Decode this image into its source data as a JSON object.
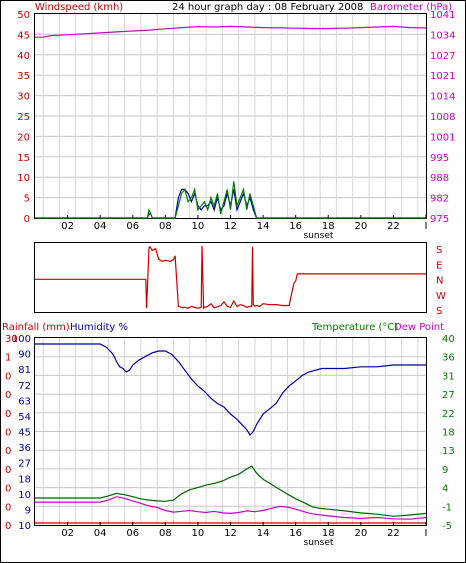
{
  "header": {
    "title": "24 hour graph day : 08 February 2008",
    "left_label": "Windspeed (kmh)",
    "right_label": "Barometer (hPa)"
  },
  "colors": {
    "wind": "#008000",
    "gust": "#0000a0",
    "baro": "#cc00cc",
    "winddir": "#cc0000",
    "rain": "#cc0000",
    "humidity": "#0000a0",
    "temperature": "#006400",
    "dewpoint": "#cc00cc",
    "text_red": "#cc0000",
    "text_mag": "#cc00cc",
    "text_green": "#008000",
    "text_blue": "#0000a0"
  },
  "x_axis": {
    "ticks": [
      "02",
      "04",
      "06",
      "08",
      "10",
      "12",
      "14",
      "16",
      "18",
      "20",
      "22",
      "I"
    ],
    "sunset_label": "sunset"
  },
  "panel3_labels": {
    "rain": "Rainfall (mm)",
    "humidity": "Humidity %",
    "temperature": "Temperature (°C)",
    "dewpoint": "Dew Point"
  },
  "chart_data": [
    {
      "type": "line",
      "title": "24 hour graph day : 08 February 2008",
      "xlabel": "",
      "ylabel": "Windspeed (kmh)",
      "y2label": "Barometer (hPa)",
      "xlim": [
        0,
        24
      ],
      "ylim": [
        0,
        50
      ],
      "y2lim": [
        975,
        1041
      ],
      "yticks": [
        0,
        5,
        10,
        15,
        20,
        25,
        30,
        35,
        40,
        45,
        50
      ],
      "y2ticks": [
        "975",
        "982",
        "988",
        "995",
        "1001",
        "1008",
        "1014",
        "1021",
        "1027",
        "1034",
        "1041"
      ],
      "series": [
        {
          "name": "Barometer (hPa)",
          "axis": "right",
          "x": [
            0,
            0.5,
            1,
            2,
            3,
            4,
            5,
            6,
            7,
            8,
            9,
            10,
            11,
            12,
            13,
            14,
            15,
            16,
            17,
            18,
            19,
            20,
            21,
            22,
            23,
            24
          ],
          "values": [
            1033.5,
            1033.5,
            1034.0,
            1034.3,
            1034.6,
            1034.9,
            1035.2,
            1035.5,
            1035.8,
            1036.2,
            1036.6,
            1036.9,
            1036.8,
            1037.0,
            1036.8,
            1036.6,
            1036.5,
            1036.4,
            1036.3,
            1036.3,
            1036.4,
            1036.6,
            1036.8,
            1037.0,
            1036.6,
            1036.5
          ]
        },
        {
          "name": "Windspeed",
          "axis": "left",
          "x": [
            0,
            6.9,
            7.0,
            7.1,
            7.2,
            8.6,
            8.8,
            9.0,
            9.2,
            9.4,
            9.6,
            9.8,
            10.0,
            10.2,
            10.4,
            10.6,
            10.8,
            11.0,
            11.2,
            11.4,
            11.6,
            11.8,
            12.0,
            12.2,
            12.4,
            12.6,
            12.8,
            13.0,
            13.2,
            13.4,
            13.6,
            24
          ],
          "values": [
            0,
            0,
            2,
            1,
            0,
            0,
            3,
            6,
            7,
            4,
            5,
            7,
            2,
            3,
            4,
            2,
            5,
            3,
            6,
            1,
            4,
            7,
            2,
            9,
            3,
            5,
            7,
            2,
            6,
            3,
            0,
            0
          ]
        },
        {
          "name": "Gust",
          "axis": "left",
          "x": [
            0,
            6.9,
            7.0,
            7.1,
            7.2,
            8.6,
            8.8,
            9.0,
            9.2,
            9.4,
            9.6,
            9.8,
            10.0,
            10.2,
            10.4,
            10.6,
            10.8,
            11.0,
            11.2,
            11.4,
            11.6,
            11.8,
            12.0,
            12.2,
            12.4,
            12.6,
            12.8,
            13.0,
            13.2,
            13.4,
            13.6,
            24
          ],
          "values": [
            0,
            0,
            1,
            1,
            0,
            0,
            5,
            7,
            7,
            6,
            4,
            6,
            3,
            2,
            3,
            3,
            4,
            2,
            5,
            2,
            3,
            6,
            3,
            7,
            2,
            4,
            6,
            3,
            5,
            2,
            0,
            0
          ]
        }
      ]
    },
    {
      "type": "line",
      "title": "",
      "ylabel": "",
      "xlim": [
        0,
        24
      ],
      "ylim": [
        0,
        360
      ],
      "right_tick_labels": [
        "S",
        "E",
        "N",
        "W",
        "S"
      ],
      "series": [
        {
          "name": "Wind direction",
          "x": [
            0,
            6.8,
            6.85,
            7.0,
            7.05,
            7.2,
            7.4,
            7.6,
            7.8,
            8.0,
            8.3,
            8.5,
            8.6,
            8.8,
            9.0,
            9.1,
            9.15,
            9.4,
            9.6,
            9.8,
            10.0,
            10.2,
            10.25,
            10.35,
            10.4,
            10.6,
            10.8,
            11.0,
            11.2,
            11.4,
            11.6,
            11.8,
            12.0,
            12.2,
            12.4,
            12.6,
            12.8,
            13.0,
            13.2,
            13.3,
            13.35,
            13.4,
            13.5,
            13.6,
            13.8,
            14.0,
            14.4,
            14.8,
            15.2,
            15.6,
            15.9,
            16.0,
            16.1,
            24
          ],
          "values": [
            170,
            170,
            10,
            345,
            350,
            330,
            340,
            280,
            270,
            275,
            270,
            280,
            300,
            20,
            15,
            12,
            15,
            10,
            20,
            14,
            10,
            15,
            355,
            10,
            15,
            20,
            35,
            12,
            18,
            25,
            45,
            20,
            15,
            50,
            20,
            30,
            25,
            15,
            20,
            20,
            350,
            30,
            20,
            25,
            20,
            35,
            30,
            30,
            25,
            25,
            150,
            160,
            200,
            200
          ]
        }
      ]
    },
    {
      "type": "line",
      "title": "",
      "xlim": [
        0,
        24
      ],
      "ylabel": "Rainfall (mm)   Humidity %",
      "y2label": "Temperature (°C)Dew Point",
      "rain_ticks": [
        "0",
        "0",
        "0",
        "0",
        "0",
        "0",
        "0",
        "0",
        "0",
        "1",
        "30"
      ],
      "humidity_ticks": [
        "10",
        "9",
        "10",
        "18",
        "27",
        "36",
        "45",
        "54",
        "63",
        "72",
        "81",
        "90",
        "100"
      ],
      "temp_ticks": [
        "-5",
        "-1",
        "4",
        "9",
        "13",
        "18",
        "22",
        "27",
        "31",
        "36",
        "40"
      ],
      "ylim_humidity": [
        0,
        100
      ],
      "ylim_temp": [
        -5,
        40
      ],
      "series": [
        {
          "name": "Humidity %",
          "axis": "left",
          "x": [
            0,
            2,
            4,
            4.4,
            4.8,
            5.0,
            5.2,
            5.4,
            5.6,
            5.8,
            6.0,
            6.4,
            6.8,
            7.2,
            7.6,
            8.0,
            8.4,
            8.8,
            9.2,
            9.6,
            10.0,
            10.4,
            10.8,
            11.2,
            11.6,
            12.0,
            12.4,
            12.8,
            13.0,
            13.2,
            13.4,
            13.6,
            13.8,
            14.0,
            14.4,
            14.8,
            15.2,
            15.6,
            16.0,
            16.4,
            16.8,
            17.2,
            17.6,
            18.0,
            19.0,
            20.0,
            21.0,
            22.0,
            23.0,
            24
          ],
          "values": [
            100,
            100,
            100,
            98,
            94,
            90,
            87,
            86,
            84,
            85,
            88,
            91,
            93,
            95,
            96,
            96,
            94,
            90,
            85,
            80,
            76,
            73,
            69,
            66,
            64,
            60,
            57,
            53,
            51,
            48,
            50,
            54,
            57,
            60,
            63,
            66,
            72,
            76,
            79,
            82,
            84,
            85,
            86,
            86,
            86,
            87,
            87,
            88,
            88,
            88
          ]
        },
        {
          "name": "Temperature (°C)",
          "axis": "right",
          "x": [
            0,
            2,
            4,
            4.5,
            5.0,
            5.5,
            6.0,
            6.5,
            7.0,
            7.5,
            8.0,
            8.5,
            9.0,
            9.5,
            10.0,
            10.5,
            11.0,
            11.5,
            12.0,
            12.5,
            13.0,
            13.3,
            13.6,
            14.0,
            14.5,
            15.0,
            15.5,
            16.0,
            16.5,
            17.0,
            17.5,
            18.0,
            19.0,
            20.0,
            21.0,
            22.0,
            23.0,
            24
          ],
          "values": [
            1.5,
            1.5,
            1.5,
            2.0,
            2.6,
            2.3,
            1.8,
            1.3,
            1.0,
            0.8,
            0.7,
            1.0,
            2.5,
            3.5,
            4.0,
            4.6,
            5.0,
            5.6,
            6.5,
            7.2,
            8.5,
            9.2,
            7.5,
            6.0,
            4.8,
            3.6,
            2.4,
            1.3,
            0.4,
            -0.6,
            -1.0,
            -1.2,
            -1.6,
            -2.1,
            -2.4,
            -2.9,
            -2.6,
            -2.2
          ]
        },
        {
          "name": "Dew Point",
          "axis": "right",
          "x": [
            0,
            2,
            4,
            4.5,
            5.0,
            5.5,
            6.0,
            6.5,
            7.0,
            7.5,
            8.0,
            8.5,
            9.0,
            9.5,
            10.0,
            10.5,
            11.0,
            11.5,
            12.0,
            12.5,
            13.0,
            13.5,
            14.0,
            14.5,
            15.0,
            15.5,
            16.0,
            16.5,
            17.0,
            18.0,
            19.0,
            20.0,
            21.0,
            22.0,
            23.0,
            24
          ],
          "values": [
            0.5,
            0.5,
            0.5,
            1.0,
            1.8,
            1.4,
            0.8,
            0.2,
            -0.4,
            -0.8,
            -1.5,
            -1.9,
            -1.7,
            -1.5,
            -1.8,
            -2.0,
            -1.7,
            -2.1,
            -2.2,
            -2.0,
            -1.6,
            -1.8,
            -1.5,
            -1.0,
            -0.5,
            -0.7,
            -1.2,
            -1.8,
            -2.3,
            -2.8,
            -3.2,
            -3.4,
            -3.2,
            -3.5,
            -3.6,
            -3.2
          ]
        },
        {
          "name": "Rainfall (mm)",
          "axis": "left",
          "x": [
            0,
            24
          ],
          "values": [
            0,
            0
          ]
        }
      ]
    }
  ]
}
